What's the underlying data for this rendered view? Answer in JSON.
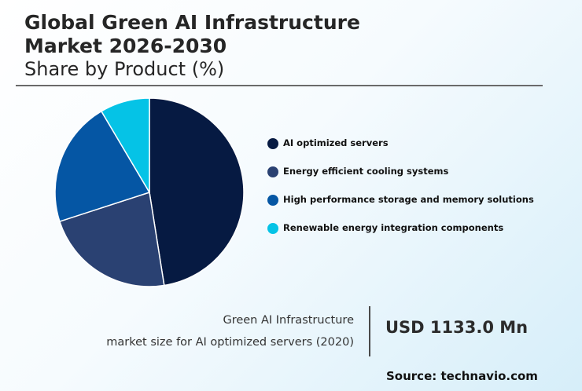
{
  "header": {
    "title_line1": "Global Green AI Infrastructure",
    "title_line2": "Market 2026-2030",
    "subtitle": "Share by Product (%)"
  },
  "chart_data": {
    "type": "pie",
    "title": "Global Green AI Infrastructure Market 2026-2030",
    "subtitle": "Share by Product (%)",
    "categories": [
      "AI optimized servers",
      "Energy efficient cooling systems",
      "High performance storage and memory solutions",
      "Renewable energy integration components"
    ],
    "values": [
      47.5,
      22.5,
      21.5,
      8.5
    ],
    "colors": [
      "#061a42",
      "#2a4172",
      "#0556a4",
      "#05c3e6"
    ],
    "legend_position": "right"
  },
  "stat": {
    "label_line1": "Green AI Infrastructure",
    "label_line2": "market size for AI optimized servers (2020)",
    "value": "USD 1133.0 Mn"
  },
  "footer": {
    "source": "Source: technavio.com"
  }
}
